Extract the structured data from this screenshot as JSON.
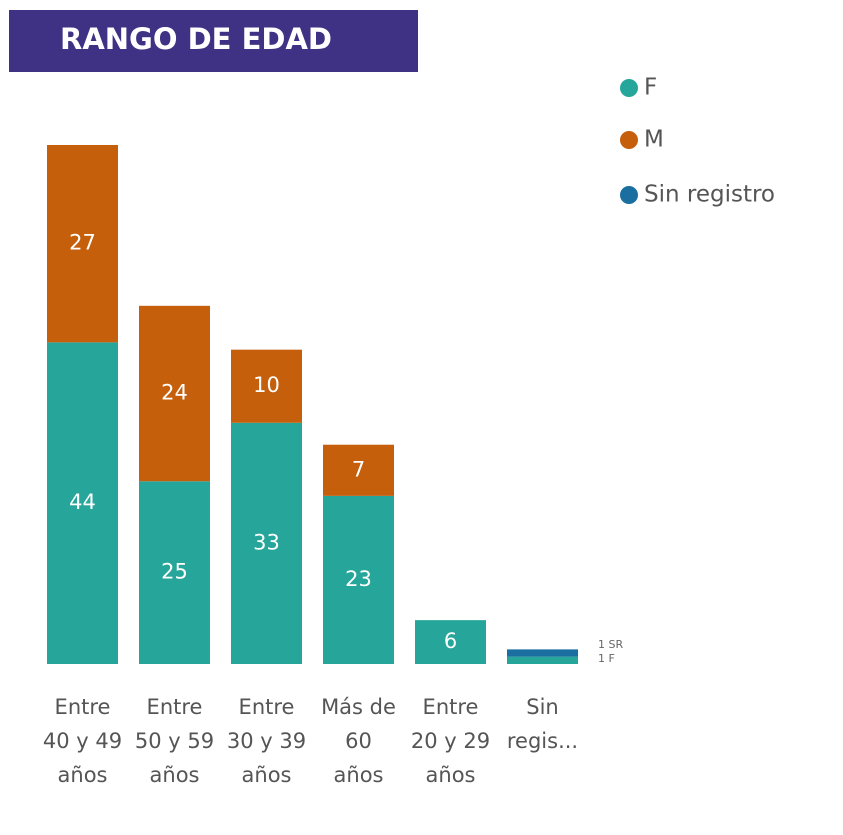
{
  "chart_data": {
    "type": "stacked_bar",
    "title": "RANGO DE EDAD",
    "categories": [
      "Entre 40 y 49 años",
      "Entre 50 y 59 años",
      "Entre 30 y 39 años",
      "Más de 60 años",
      "Entre 20 y 29 años",
      "Sin regis..."
    ],
    "series": [
      {
        "name": "F",
        "color": "#26a69a",
        "values": [
          44,
          25,
          33,
          23,
          6,
          1
        ],
        "value_labels": [
          "44",
          "25",
          "33",
          "23",
          "6",
          "1 F"
        ]
      },
      {
        "name": "M",
        "color": "#c55f0c",
        "values": [
          27,
          24,
          10,
          7,
          null,
          null
        ],
        "value_labels": [
          "27",
          "24",
          "10",
          "7",
          null,
          null
        ]
      },
      {
        "name": "Sin registro",
        "color": "#1a6fa0",
        "values": [
          null,
          null,
          null,
          null,
          null,
          1
        ],
        "value_labels": [
          null,
          null,
          null,
          null,
          null,
          "1 SR"
        ]
      }
    ],
    "legend": "top-right"
  }
}
